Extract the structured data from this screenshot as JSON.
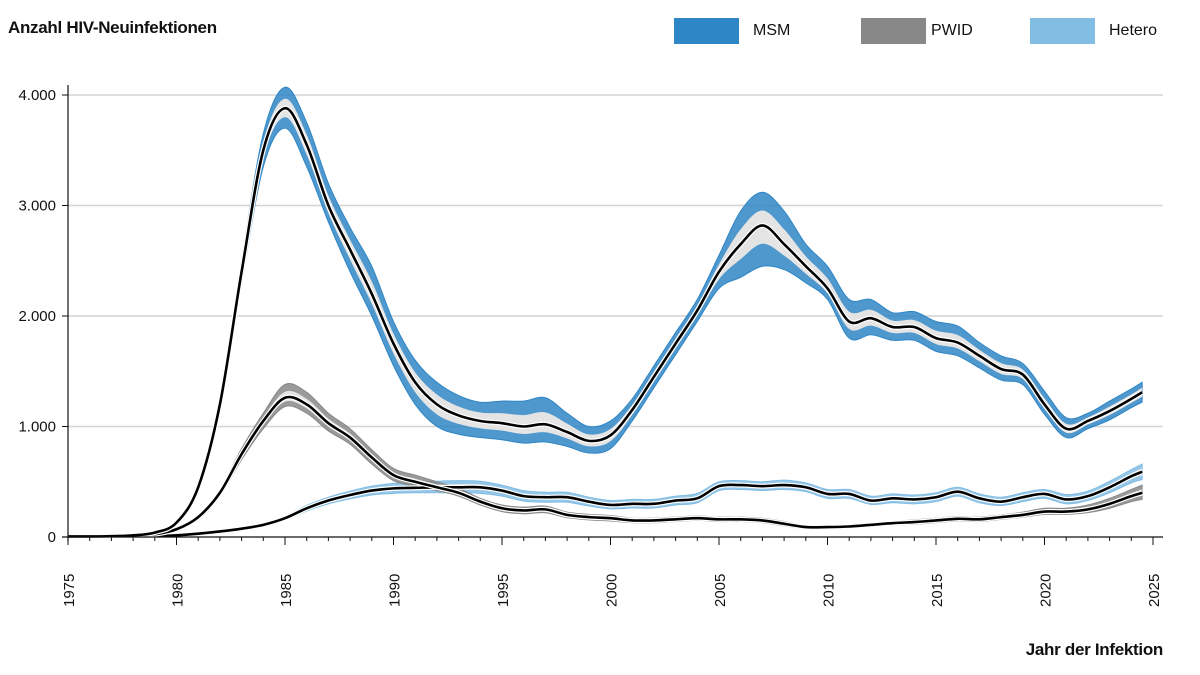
{
  "chart_data": {
    "type": "line",
    "title": "Anzahl HIV-Neuinfektionen",
    "xlabel": "Jahr der Infektion",
    "ylabel": "Anzahl HIV-Neuinfektionen",
    "xlim": [
      1975,
      2025
    ],
    "ylim": [
      0,
      4000
    ],
    "grid": true,
    "legend_position": "top-right",
    "x_ticks": [
      "1975",
      "1980",
      "1985",
      "1990",
      "1995",
      "2000",
      "2005",
      "2010",
      "2015",
      "2020",
      "2025"
    ],
    "y_ticks": [
      "0",
      "1.000",
      "2.000",
      "3.000",
      "4.000"
    ],
    "y_tick_values": [
      0,
      1000,
      2000,
      3000,
      4000
    ],
    "x": [
      1975,
      1976,
      1977,
      1978,
      1979,
      1980,
      1981,
      1982,
      1983,
      1984,
      1985,
      1986,
      1987,
      1988,
      1989,
      1990,
      1991,
      1992,
      1993,
      1994,
      1995,
      1996,
      1997,
      1998,
      1999,
      2000,
      2001,
      2002,
      2003,
      2004,
      2005,
      2006,
      2007,
      2008,
      2009,
      2010,
      2011,
      2012,
      2013,
      2014,
      2015,
      2016,
      2017,
      2018,
      2019,
      2020,
      2021,
      2022,
      2023,
      2024,
      2024.5
    ],
    "series": [
      {
        "name": "MSM",
        "color": "#2f86c6",
        "values": [
          5,
          5,
          8,
          15,
          40,
          130,
          450,
          1200,
          2400,
          3500,
          3880,
          3550,
          3000,
          2600,
          2200,
          1750,
          1400,
          1200,
          1100,
          1050,
          1030,
          1000,
          1020,
          950,
          870,
          920,
          1150,
          1450,
          1750,
          2050,
          2400,
          2650,
          2820,
          2650,
          2450,
          2250,
          1950,
          1980,
          1900,
          1900,
          1800,
          1760,
          1640,
          1520,
          1470,
          1200,
          980,
          1050,
          1140,
          1250,
          1310
        ],
        "lower": [
          5,
          5,
          8,
          15,
          40,
          125,
          430,
          1150,
          2300,
          3350,
          3700,
          3350,
          2850,
          2400,
          2000,
          1550,
          1200,
          1000,
          930,
          900,
          880,
          850,
          860,
          820,
          760,
          800,
          1050,
          1350,
          1650,
          1950,
          2250,
          2350,
          2450,
          2420,
          2300,
          2150,
          1800,
          1830,
          1780,
          1780,
          1680,
          1640,
          1530,
          1420,
          1380,
          1110,
          900,
          980,
          1060,
          1170,
          1220
        ],
        "upper": [
          5,
          5,
          8,
          15,
          40,
          135,
          470,
          1250,
          2500,
          3650,
          4070,
          3750,
          3200,
          2800,
          2450,
          1950,
          1600,
          1400,
          1280,
          1220,
          1230,
          1230,
          1260,
          1120,
          1000,
          1050,
          1250,
          1550,
          1850,
          2150,
          2550,
          2950,
          3120,
          2950,
          2650,
          2450,
          2150,
          2150,
          2030,
          2040,
          1950,
          1910,
          1760,
          1640,
          1570,
          1320,
          1080,
          1120,
          1230,
          1340,
          1400
        ]
      },
      {
        "name": "PWID",
        "color": "#888888",
        "values": [
          5,
          5,
          8,
          12,
          25,
          70,
          180,
          400,
          750,
          1050,
          1260,
          1200,
          1030,
          900,
          720,
          560,
          500,
          450,
          400,
          320,
          260,
          240,
          250,
          200,
          180,
          170,
          150,
          150,
          160,
          170,
          160,
          160,
          150,
          120,
          90,
          90,
          95,
          110,
          125,
          135,
          150,
          165,
          160,
          180,
          200,
          230,
          230,
          250,
          300,
          370,
          400
        ],
        "lower": [
          5,
          5,
          8,
          12,
          25,
          65,
          165,
          370,
          700,
          980,
          1180,
          1120,
          960,
          840,
          660,
          510,
          460,
          420,
          370,
          290,
          230,
          210,
          220,
          175,
          155,
          145,
          130,
          130,
          140,
          150,
          140,
          140,
          130,
          100,
          75,
          75,
          80,
          95,
          110,
          115,
          130,
          145,
          140,
          160,
          180,
          205,
          205,
          220,
          260,
          320,
          340
        ],
        "upper": [
          5,
          5,
          8,
          12,
          25,
          75,
          195,
          430,
          800,
          1120,
          1380,
          1310,
          1120,
          980,
          790,
          620,
          560,
          500,
          440,
          350,
          290,
          270,
          280,
          225,
          205,
          195,
          170,
          170,
          180,
          190,
          180,
          180,
          170,
          140,
          105,
          105,
          110,
          125,
          140,
          155,
          170,
          185,
          180,
          200,
          225,
          260,
          260,
          290,
          350,
          430,
          470
        ]
      },
      {
        "name": "Hetero",
        "color": "#82bde4",
        "values": [
          2,
          2,
          3,
          5,
          8,
          15,
          30,
          50,
          75,
          110,
          170,
          260,
          330,
          380,
          420,
          440,
          445,
          450,
          450,
          450,
          420,
          370,
          360,
          360,
          320,
          290,
          300,
          300,
          330,
          350,
          460,
          470,
          460,
          470,
          450,
          390,
          390,
          330,
          350,
          340,
          360,
          410,
          350,
          320,
          360,
          390,
          340,
          370,
          450,
          550,
          590
        ],
        "lower": [
          2,
          2,
          3,
          5,
          8,
          14,
          28,
          46,
          68,
          100,
          155,
          235,
          300,
          345,
          380,
          395,
          400,
          400,
          400,
          395,
          370,
          325,
          315,
          315,
          280,
          255,
          262,
          262,
          290,
          310,
          420,
          430,
          420,
          430,
          410,
          350,
          350,
          295,
          310,
          300,
          320,
          370,
          310,
          285,
          320,
          350,
          300,
          330,
          400,
          490,
          520
        ],
        "upper": [
          2,
          2,
          3,
          5,
          8,
          16,
          32,
          55,
          82,
          120,
          185,
          285,
          360,
          415,
          460,
          485,
          495,
          505,
          510,
          505,
          470,
          420,
          405,
          405,
          360,
          330,
          340,
          340,
          370,
          395,
          500,
          510,
          500,
          515,
          490,
          430,
          430,
          370,
          390,
          380,
          400,
          450,
          390,
          360,
          400,
          430,
          385,
          415,
          505,
          610,
          660
        ]
      }
    ]
  }
}
